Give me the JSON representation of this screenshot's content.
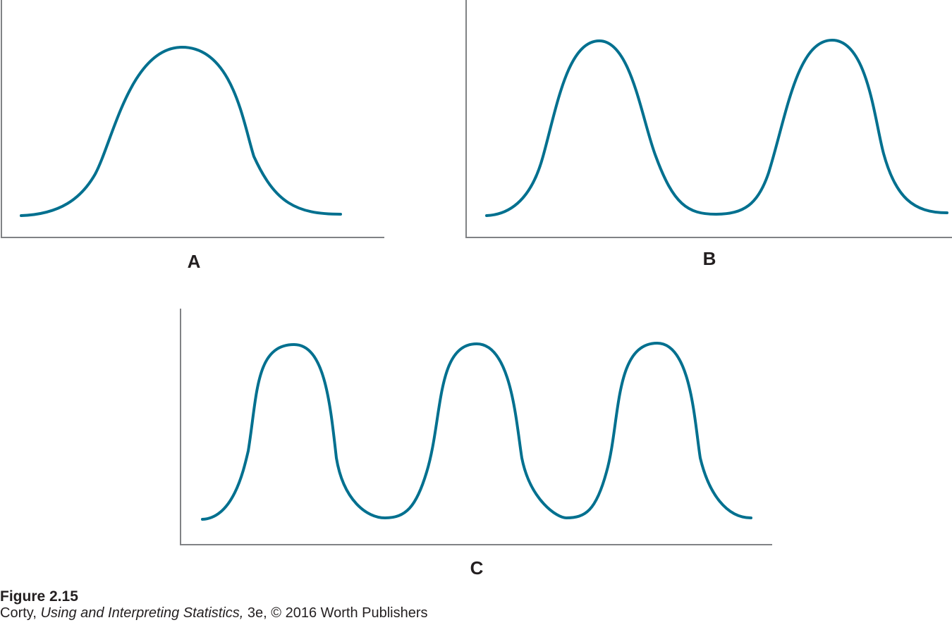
{
  "colors": {
    "curve": "#00708f",
    "axis": "#808285",
    "text": "#231f20"
  },
  "chart_data": [
    {
      "type": "line",
      "panel": "A",
      "description_shape": "unimodal",
      "x": [
        0,
        1,
        2,
        3,
        4,
        5,
        6,
        7,
        8,
        9,
        10,
        11,
        12,
        13,
        14,
        15,
        16,
        17,
        18,
        19,
        20
      ],
      "y": [
        0.0,
        0.01,
        0.04,
        0.09,
        0.18,
        0.31,
        0.47,
        0.64,
        0.81,
        0.94,
        1.0,
        0.94,
        0.81,
        0.64,
        0.47,
        0.31,
        0.18,
        0.09,
        0.04,
        0.01,
        0.0
      ],
      "xlabel": "",
      "ylabel": "",
      "title": "",
      "axes": [
        "left",
        "bottom"
      ],
      "grid": false
    },
    {
      "type": "line",
      "panel": "B",
      "description_shape": "bimodal",
      "x": [
        0,
        1,
        2,
        3,
        4,
        5,
        6,
        7,
        8,
        9,
        10,
        11,
        12,
        13,
        14,
        15,
        16,
        17,
        18,
        19,
        20,
        21,
        22,
        23,
        24,
        25,
        26,
        27,
        28
      ],
      "y": [
        0.0,
        0.02,
        0.09,
        0.29,
        0.6,
        0.89,
        1.0,
        0.89,
        0.6,
        0.29,
        0.09,
        0.02,
        0.0,
        0.0,
        0.0,
        0.0,
        0.02,
        0.09,
        0.29,
        0.6,
        0.89,
        1.0,
        0.89,
        0.6,
        0.29,
        0.09,
        0.02,
        0.0,
        0.0
      ],
      "xlabel": "",
      "ylabel": "",
      "title": "",
      "axes": [
        "left",
        "bottom"
      ],
      "grid": false
    },
    {
      "type": "line",
      "panel": "C",
      "description_shape": "multimodal",
      "x": [
        0,
        1,
        2,
        3,
        4,
        5,
        6,
        7,
        8,
        9,
        10,
        11,
        12,
        13,
        14,
        15,
        16,
        17,
        18,
        19,
        20,
        21,
        22,
        23,
        24,
        25,
        26,
        27,
        28,
        29,
        30
      ],
      "y": [
        0.0,
        0.05,
        0.3,
        0.8,
        1.0,
        0.8,
        0.3,
        0.05,
        0.0,
        0.0,
        0.0,
        0.05,
        0.3,
        0.8,
        1.0,
        0.8,
        0.3,
        0.05,
        0.0,
        0.0,
        0.0,
        0.05,
        0.3,
        0.8,
        1.0,
        0.8,
        0.3,
        0.05,
        0.0,
        0.0,
        0.0
      ],
      "xlabel": "",
      "ylabel": "",
      "title": "",
      "axes": [
        "left",
        "bottom"
      ],
      "grid": false
    }
  ],
  "caption": {
    "figure_number": "Figure 2.15",
    "author": "Corty",
    "book_title": "Using and Interpreting Statistics,",
    "rest": " 3e, © 2016 Worth Publishers"
  }
}
